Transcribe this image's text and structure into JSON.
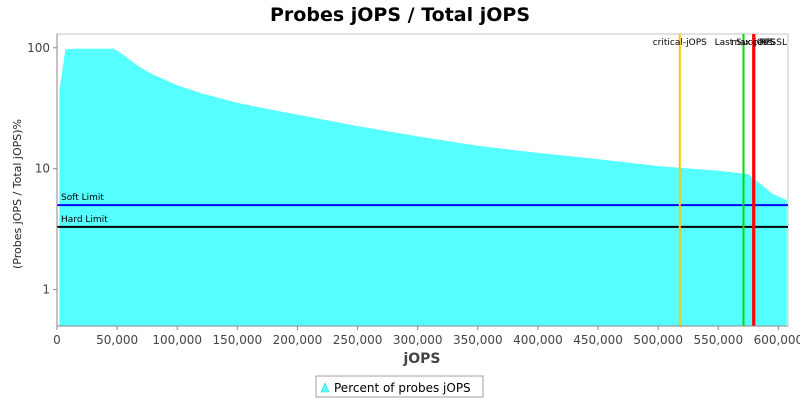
{
  "chart_data": {
    "type": "area",
    "title": "Probes jOPS / Total jOPS",
    "xlabel": "jOPS",
    "ylabel": "(Probes jOPS / Total jOPS)%",
    "xlim": [
      0,
      608000
    ],
    "ylim": [
      0.5,
      130
    ],
    "y_scale": "log",
    "x_ticks": [
      0,
      50000,
      100000,
      150000,
      200000,
      250000,
      300000,
      350000,
      400000,
      450000,
      500000,
      550000,
      600000
    ],
    "x_tick_labels": [
      "0",
      "50,000",
      "100,000",
      "150,000",
      "200,000",
      "250,000",
      "300,000",
      "350,000",
      "400,000",
      "450,000",
      "500,000",
      "550,000",
      "600,000"
    ],
    "y_ticks": [
      1,
      10,
      100
    ],
    "y_tick_labels": [
      "1",
      "10",
      "100"
    ],
    "grid": false,
    "series": [
      {
        "name": "Percent of probes jOPS",
        "color": "#55ffff",
        "points": [
          [
            2000,
            45
          ],
          [
            4000,
            60
          ],
          [
            7000,
            97
          ],
          [
            15000,
            98
          ],
          [
            30000,
            98
          ],
          [
            47000,
            98
          ],
          [
            55000,
            88
          ],
          [
            60000,
            80
          ],
          [
            70000,
            68
          ],
          [
            80000,
            60
          ],
          [
            100000,
            49
          ],
          [
            120000,
            42
          ],
          [
            150000,
            35
          ],
          [
            180000,
            30.5
          ],
          [
            200000,
            28
          ],
          [
            250000,
            22.5
          ],
          [
            300000,
            18.5
          ],
          [
            350000,
            15.5
          ],
          [
            400000,
            13.5
          ],
          [
            450000,
            12
          ],
          [
            500000,
            10.5
          ],
          [
            550000,
            9.6
          ],
          [
            575000,
            9.0
          ],
          [
            585000,
            7.5
          ],
          [
            595000,
            6.2
          ],
          [
            607000,
            5.5
          ]
        ]
      }
    ],
    "horizontal_lines": [
      {
        "label": "Soft Limit",
        "value": 5,
        "color": "#0000ff"
      },
      {
        "label": "Hard Limit",
        "value": 3.3,
        "color": "#000000"
      }
    ],
    "vertical_lines": [
      {
        "label": "critical-jOPS",
        "value": 518000,
        "color": "#ffc800"
      },
      {
        "label": "Last Success",
        "value": 571000,
        "color": "#00dd00"
      },
      {
        "label": "max-jOPS",
        "value": 579000,
        "color": "#ff0000"
      },
      {
        "label": "RTSSL",
        "value": 580000,
        "color": "#ff0000"
      }
    ],
    "legend": {
      "position": "bottom",
      "entries": [
        "Percent of probes jOPS"
      ]
    }
  }
}
